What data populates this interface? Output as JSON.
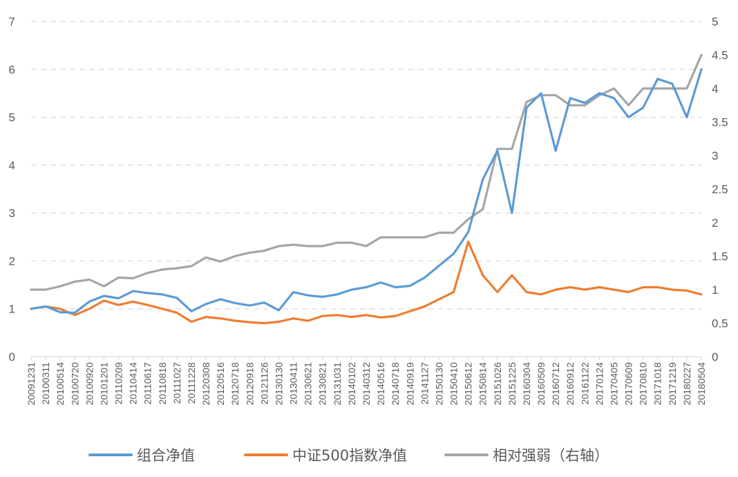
{
  "chart_data": {
    "type": "line",
    "title": "",
    "xlabel": "",
    "ylabel": "",
    "y_left": {
      "range": [
        0,
        7
      ],
      "ticks": [
        "0",
        "1",
        "2",
        "3",
        "4",
        "5",
        "6",
        "7"
      ]
    },
    "y_right": {
      "range": [
        0,
        5
      ],
      "ticks": [
        "0",
        "0.5",
        "1",
        "1.5",
        "2",
        "2.5",
        "3",
        "3.5",
        "4",
        "4.5",
        "5"
      ]
    },
    "grid": "horizontal-dashed",
    "legend_position": "bottom",
    "x_tick_labels": [
      "20091231",
      "20100311",
      "20100514",
      "20100720",
      "20100920",
      "20101201",
      "20110209",
      "20110414",
      "20110617",
      "20110818",
      "20111027",
      "20111228",
      "20120308",
      "20120516",
      "20120718",
      "20120918",
      "20121126",
      "20130130",
      "20130411",
      "20130621",
      "20130821",
      "20131031",
      "20140102",
      "20140312",
      "20140516",
      "20140718",
      "20140919",
      "20141127",
      "20150130",
      "20150410",
      "20150612",
      "20150814",
      "20151026",
      "20151225",
      "20160304",
      "20160509",
      "20160712",
      "20160912",
      "20161122",
      "20170124",
      "20170405",
      "20170609",
      "20170810",
      "20171018",
      "20171219",
      "20180227",
      "20180504"
    ],
    "series": [
      {
        "name": "组合净值",
        "axis": "left",
        "color": "#5b9bd5",
        "values": [
          1.0,
          1.05,
          0.93,
          0.92,
          1.15,
          1.27,
          1.22,
          1.37,
          1.33,
          1.3,
          1.23,
          0.95,
          1.1,
          1.2,
          1.12,
          1.07,
          1.13,
          0.97,
          1.35,
          1.28,
          1.25,
          1.3,
          1.4,
          1.45,
          1.55,
          1.45,
          1.48,
          1.65,
          1.9,
          2.15,
          2.6,
          3.7,
          4.3,
          3.0,
          5.2,
          5.5,
          4.3,
          5.4,
          5.3,
          5.5,
          5.4,
          5.0,
          5.2,
          5.8,
          5.7,
          5.0,
          6.0
        ]
      },
      {
        "name": "中证500指数净值",
        "axis": "left",
        "color": "#ed7d31",
        "values": [
          1.0,
          1.05,
          1.0,
          0.87,
          1.0,
          1.17,
          1.08,
          1.15,
          1.08,
          1.0,
          0.92,
          0.73,
          0.83,
          0.8,
          0.75,
          0.72,
          0.7,
          0.73,
          0.8,
          0.75,
          0.85,
          0.87,
          0.83,
          0.87,
          0.82,
          0.85,
          0.95,
          1.05,
          1.2,
          1.35,
          2.4,
          1.7,
          1.35,
          1.7,
          1.35,
          1.3,
          1.4,
          1.45,
          1.4,
          1.45,
          1.4,
          1.35,
          1.45,
          1.45,
          1.4,
          1.38,
          1.3
        ]
      },
      {
        "name": "相对强弱（右轴）",
        "axis": "right",
        "color": "#a5a5a5",
        "values": [
          1.0,
          1.0,
          1.05,
          1.12,
          1.15,
          1.05,
          1.18,
          1.17,
          1.25,
          1.3,
          1.32,
          1.35,
          1.48,
          1.42,
          1.5,
          1.55,
          1.58,
          1.65,
          1.67,
          1.65,
          1.65,
          1.7,
          1.7,
          1.65,
          1.78,
          1.78,
          1.78,
          1.78,
          1.85,
          1.85,
          2.05,
          2.2,
          3.1,
          3.1,
          3.8,
          3.9,
          3.9,
          3.75,
          3.75,
          3.9,
          4.0,
          3.75,
          4.0,
          4.0,
          4.0,
          4.0,
          4.5
        ]
      }
    ]
  }
}
